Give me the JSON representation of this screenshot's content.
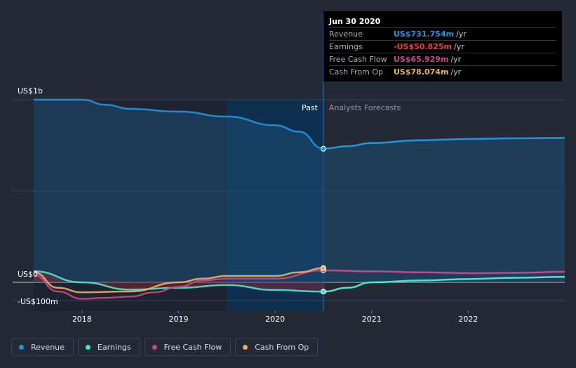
{
  "chart_data": {
    "type": "line",
    "y_axis": {
      "unit": "US$ m",
      "range": [
        -100,
        1000
      ],
      "top_label": "US$1b",
      "zero_label": "US$0",
      "bottom_label": "-US$100m"
    },
    "x_axis": {
      "range": [
        2017.5,
        2023.0
      ],
      "ticks": [
        2018,
        2019,
        2020,
        2021,
        2022
      ],
      "tick_labels": [
        "2018",
        "2019",
        "2020",
        "2021",
        "2022"
      ]
    },
    "past_end": 2020.5,
    "shaded_start": 2019.5,
    "region_labels": {
      "past": "Past",
      "forecast": "Analysts Forecasts"
    },
    "series": [
      {
        "name": "Revenue",
        "color": "#2394df",
        "points": [
          [
            2017.5,
            1000
          ],
          [
            2018.0,
            1000
          ],
          [
            2018.25,
            972
          ],
          [
            2018.5,
            950
          ],
          [
            2019.0,
            935
          ],
          [
            2019.5,
            908
          ],
          [
            2020.0,
            860
          ],
          [
            2020.25,
            825
          ],
          [
            2020.5,
            731.754
          ],
          [
            2020.75,
            745
          ],
          [
            2021.0,
            763
          ],
          [
            2021.5,
            778
          ],
          [
            2022.0,
            785
          ],
          [
            2022.5,
            789
          ],
          [
            2023.0,
            791
          ]
        ]
      },
      {
        "name": "Earnings",
        "color": "#4fe3cf",
        "points": [
          [
            2017.5,
            60
          ],
          [
            2018.0,
            0
          ],
          [
            2018.5,
            -40
          ],
          [
            2019.0,
            -30
          ],
          [
            2019.5,
            -15
          ],
          [
            2020.0,
            -42
          ],
          [
            2020.5,
            -50.825
          ],
          [
            2020.75,
            -30
          ],
          [
            2021.0,
            0
          ],
          [
            2021.5,
            10
          ],
          [
            2022.0,
            18
          ],
          [
            2022.5,
            25
          ],
          [
            2023.0,
            30
          ]
        ]
      },
      {
        "name": "Free Cash Flow",
        "color": "#c4478b",
        "points": [
          [
            2017.5,
            40
          ],
          [
            2017.75,
            -50
          ],
          [
            2018.0,
            -90
          ],
          [
            2018.25,
            -85
          ],
          [
            2018.5,
            -78
          ],
          [
            2018.75,
            -55
          ],
          [
            2019.0,
            -25
          ],
          [
            2019.25,
            10
          ],
          [
            2019.5,
            20
          ],
          [
            2020.0,
            20
          ],
          [
            2020.5,
            65.929
          ],
          [
            2021.0,
            60
          ],
          [
            2021.5,
            55
          ],
          [
            2022.0,
            50
          ],
          [
            2022.5,
            52
          ],
          [
            2023.0,
            58
          ]
        ]
      },
      {
        "name": "Cash From Op",
        "color": "#e9b163",
        "points": [
          [
            2017.5,
            55
          ],
          [
            2017.75,
            -30
          ],
          [
            2018.0,
            -55
          ],
          [
            2018.5,
            -50
          ],
          [
            2019.0,
            0
          ],
          [
            2019.25,
            20
          ],
          [
            2019.5,
            35
          ],
          [
            2020.0,
            35
          ],
          [
            2020.25,
            55
          ],
          [
            2020.5,
            78.074
          ]
        ]
      }
    ]
  },
  "tooltip": {
    "date": "Jun 30 2020",
    "rows": [
      {
        "label": "Revenue",
        "value": "US$731.754m",
        "unit": "/yr",
        "color": "#2394df"
      },
      {
        "label": "Earnings",
        "value": "-US$50.825m",
        "unit": "/yr",
        "color": "#e8433f"
      },
      {
        "label": "Free Cash Flow",
        "value": "US$65.929m",
        "unit": "/yr",
        "color": "#c4478b"
      },
      {
        "label": "Cash From Op",
        "value": "US$78.074m",
        "unit": "/yr",
        "color": "#e9b163"
      }
    ]
  },
  "legend": [
    {
      "label": "Revenue",
      "color": "#2394df"
    },
    {
      "label": "Earnings",
      "color": "#4fe3cf"
    },
    {
      "label": "Free Cash Flow",
      "color": "#c4478b"
    },
    {
      "label": "Cash From Op",
      "color": "#e9b163"
    }
  ]
}
